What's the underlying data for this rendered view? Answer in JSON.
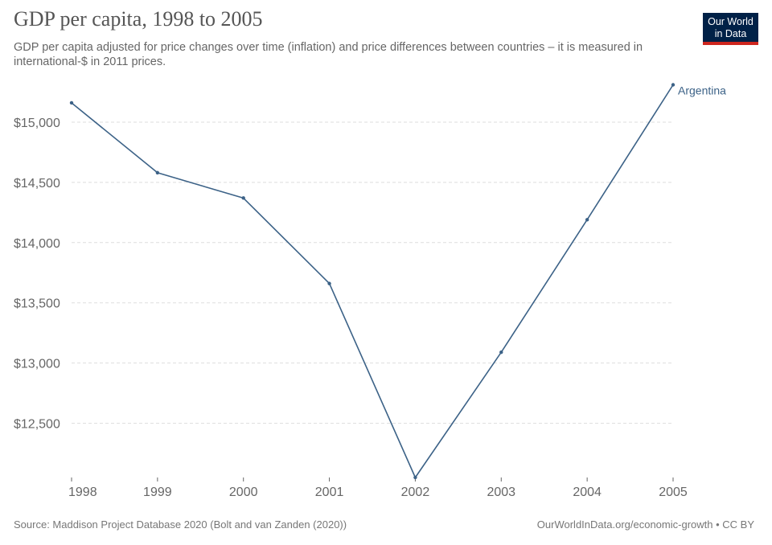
{
  "title": "GDP per capita, 1998 to 2005",
  "subtitle": "GDP per capita adjusted for price changes over time (inflation) and price differences between countries – it is measured in international-$ in 2011 prices.",
  "logo": {
    "line1": "Our World",
    "line2": "in Data"
  },
  "source": "Source: Maddison Project Database 2020 (Bolt and van Zanden (2020))",
  "credit": "OurWorldInData.org/economic-growth • CC BY",
  "colors": {
    "series": "#3c6287",
    "grid": "#dddddd",
    "axis": "#666666",
    "tick_text": "#666666"
  },
  "chart_data": {
    "type": "line",
    "title": "GDP per capita, 1998 to 2005",
    "xlabel": "",
    "ylabel": "",
    "x": [
      1998,
      1999,
      2000,
      2001,
      2002,
      2003,
      2004,
      2005
    ],
    "x_tick_labels": [
      "1998",
      "1999",
      "2000",
      "2001",
      "2002",
      "2003",
      "2004",
      "2005"
    ],
    "y_ticks": [
      12500,
      13000,
      13500,
      14000,
      14500,
      15000
    ],
    "y_tick_labels": [
      "$12,500",
      "$13,000",
      "$13,500",
      "$14,000",
      "$14,500",
      "$15,000"
    ],
    "ylim": [
      12050,
      15320
    ],
    "grid": true,
    "series": [
      {
        "name": "Argentina",
        "values": [
          15160,
          14580,
          14370,
          13660,
          12050,
          13090,
          14190,
          15310
        ]
      }
    ]
  }
}
